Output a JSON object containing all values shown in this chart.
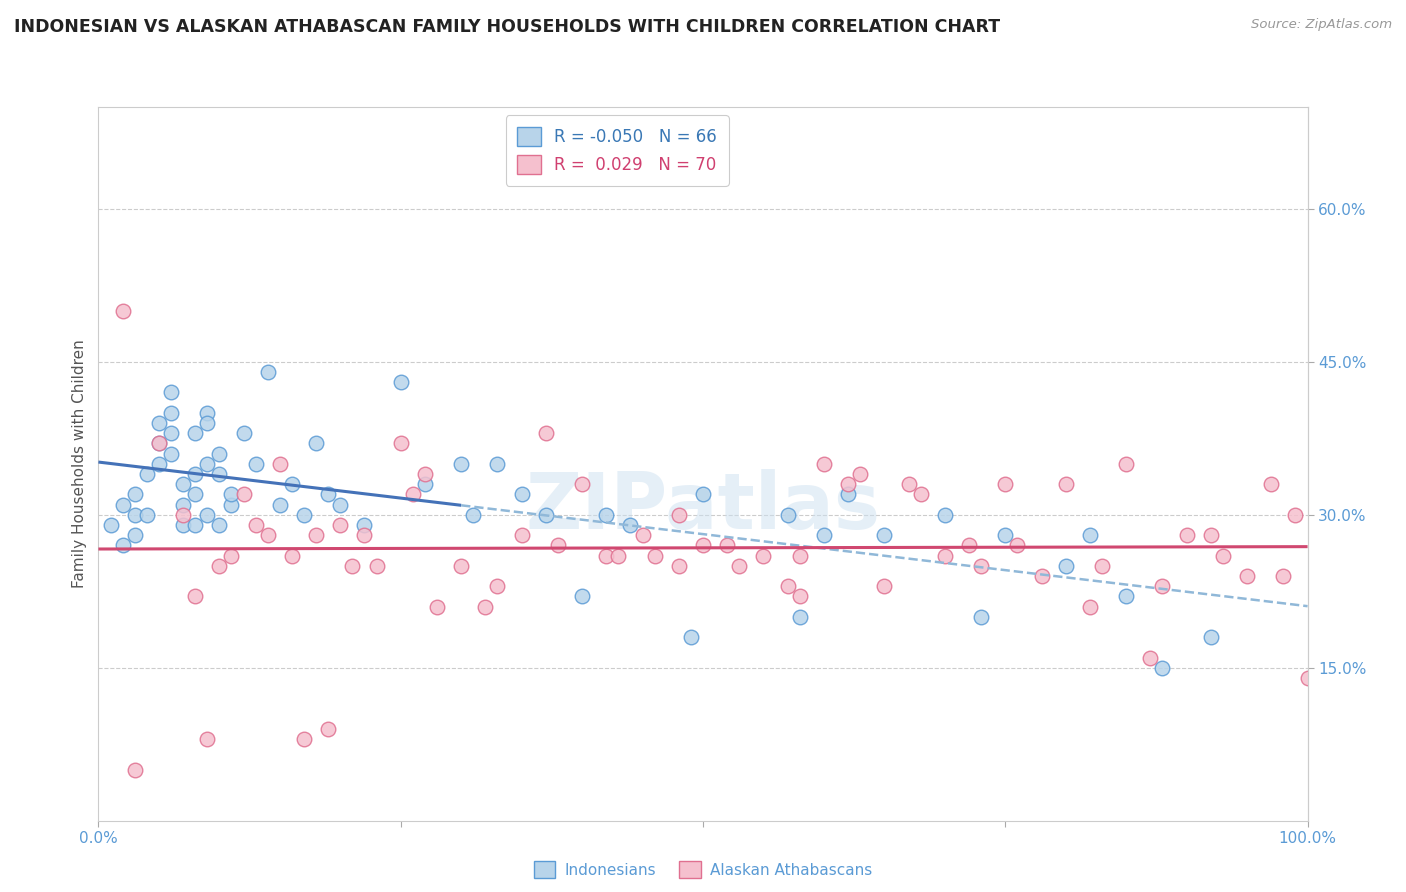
{
  "title": "INDONESIAN VS ALASKAN ATHABASCAN FAMILY HOUSEHOLDS WITH CHILDREN CORRELATION CHART",
  "source": "Source: ZipAtlas.com",
  "ylabel": "Family Households with Children",
  "watermark": "ZIPatlas",
  "blue_R": -0.05,
  "blue_N": 66,
  "pink_R": 0.029,
  "pink_N": 70,
  "blue_color": "#b8d4ea",
  "blue_edge": "#5b9bd5",
  "pink_color": "#f5c0ce",
  "pink_edge": "#e07090",
  "blue_line_color": "#4472b8",
  "pink_line_color": "#d04870",
  "dashed_line_color": "#90b8d8",
  "xlim": [
    0,
    100
  ],
  "ylim": [
    0,
    70
  ],
  "xticks": [
    0,
    25,
    50,
    75,
    100
  ],
  "xticklabels": [
    "0.0%",
    "",
    "",
    "",
    "100.0%"
  ],
  "ytick_positions": [
    15,
    30,
    45,
    60
  ],
  "ytick_labels": [
    "15.0%",
    "30.0%",
    "45.0%",
    "60.0%"
  ],
  "blue_x": [
    1,
    2,
    2,
    3,
    3,
    3,
    4,
    4,
    5,
    5,
    5,
    6,
    6,
    6,
    6,
    7,
    7,
    7,
    8,
    8,
    8,
    8,
    9,
    9,
    9,
    9,
    10,
    10,
    10,
    11,
    11,
    12,
    13,
    14,
    15,
    16,
    17,
    18,
    19,
    20,
    22,
    25,
    27,
    30,
    31,
    33,
    35,
    37,
    40,
    42,
    44,
    49,
    50,
    57,
    58,
    60,
    62,
    65,
    70,
    73,
    75,
    80,
    82,
    85,
    88,
    92
  ],
  "blue_y": [
    29,
    31,
    27,
    32,
    30,
    28,
    34,
    30,
    37,
    35,
    39,
    38,
    40,
    36,
    42,
    33,
    31,
    29,
    38,
    34,
    32,
    29,
    40,
    39,
    35,
    30,
    36,
    34,
    29,
    31,
    32,
    38,
    35,
    44,
    31,
    33,
    30,
    37,
    32,
    31,
    29,
    43,
    33,
    35,
    30,
    35,
    32,
    30,
    22,
    30,
    29,
    18,
    32,
    30,
    20,
    28,
    32,
    28,
    30,
    20,
    28,
    25,
    28,
    22,
    15,
    18
  ],
  "pink_x": [
    2,
    3,
    5,
    7,
    8,
    9,
    10,
    11,
    12,
    13,
    14,
    15,
    16,
    17,
    18,
    19,
    20,
    21,
    22,
    23,
    25,
    26,
    27,
    28,
    30,
    32,
    33,
    35,
    37,
    38,
    40,
    42,
    43,
    45,
    46,
    48,
    50,
    52,
    53,
    55,
    57,
    58,
    60,
    62,
    63,
    65,
    67,
    68,
    70,
    72,
    73,
    75,
    76,
    78,
    80,
    82,
    83,
    85,
    87,
    88,
    90,
    92,
    93,
    95,
    97,
    98,
    99,
    100,
    48,
    58
  ],
  "pink_y": [
    50,
    5,
    37,
    30,
    22,
    8,
    25,
    26,
    32,
    29,
    28,
    35,
    26,
    8,
    28,
    9,
    29,
    25,
    28,
    25,
    37,
    32,
    34,
    21,
    25,
    21,
    23,
    28,
    38,
    27,
    33,
    26,
    26,
    28,
    26,
    25,
    27,
    27,
    25,
    26,
    23,
    26,
    35,
    33,
    34,
    23,
    33,
    32,
    26,
    27,
    25,
    33,
    27,
    24,
    33,
    21,
    25,
    35,
    16,
    23,
    28,
    28,
    26,
    24,
    33,
    24,
    30,
    14,
    30,
    22
  ],
  "blue_line_x0": 0,
  "blue_line_x1": 100,
  "blue_solid_end": 30,
  "pink_line_x0": 0,
  "pink_line_x1": 100
}
